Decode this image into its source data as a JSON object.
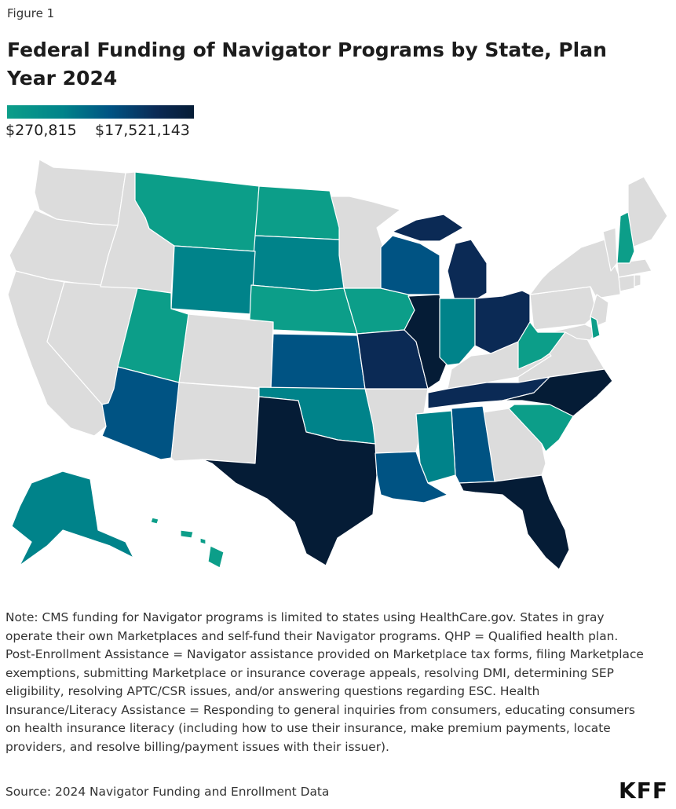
{
  "figure_label": "Figure 1",
  "title": "Federal Funding of Navigator Programs by State, Plan Year 2024",
  "legend": {
    "min_label": "$270,815",
    "max_label": "$17,521,143",
    "min_value": 270815,
    "max_value": 17521143,
    "min_color": "#0c9e89",
    "max_color": "#051c36"
  },
  "colors": {
    "self_funded_gray": "#dcdcdc",
    "level_1": "#0c9e89",
    "level_2": "#00838a",
    "level_3": "#005383",
    "level_4": "#0b2a55",
    "level_5": "#051c36"
  },
  "state_levels": {
    "MT": 1,
    "ND": 1,
    "WY": 2,
    "SD": 2,
    "NE": 1,
    "IA": 1,
    "UT": 1,
    "AZ": 3,
    "KS": 3,
    "OK": 2,
    "TX": 5,
    "MO": 4,
    "IL": 5,
    "WI": 3,
    "MI": 4,
    "IN": 2,
    "OH": 4,
    "WV": 1,
    "TN": 4,
    "NC": 5,
    "SC": 1,
    "AL": 3,
    "MS": 2,
    "LA": 3,
    "FL": 5,
    "NH": 1,
    "DE": 1,
    "AK": 2,
    "HI": 1
  },
  "note": "Note: CMS funding for Navigator programs is limited to states using HealthCare.gov. States in gray operate their own Marketplaces and self-fund their Navigator programs. QHP = Qualified health plan. Post-Enrollment Assistance = Navigator assistance provided on Marketplace tax forms, filing Marketplace exemptions, submitting Marketplace or insurance coverage appeals, resolving DMI, determining SEP eligibility, resolving APTC/CSR issues, and/or answering questions regarding ESC. Health Insurance/Literacy Assistance = Responding to general inquiries from consumers, educating consumers on health insurance literacy (including how to use their insurance, make premium payments, locate providers, and resolve billing/payment issues with their issuer).",
  "source": "Source: 2024 Navigator Funding and Enrollment Data",
  "logo": "KFF"
}
